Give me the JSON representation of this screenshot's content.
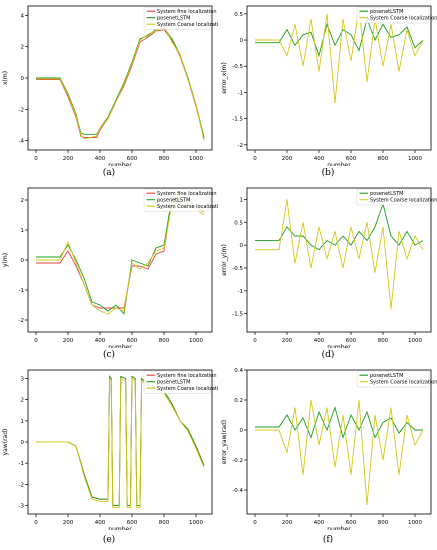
{
  "colors": {
    "fine": "#e8413c",
    "lstm": "#1e9e1e",
    "coarse": "#d4c81a"
  },
  "chart_data": [
    {
      "type": "line",
      "caption": "(a)",
      "xlabel": "number",
      "ylabel": "x(m)",
      "xlim": [
        -50,
        1100
      ],
      "ylim": [
        -4.6,
        4.6
      ],
      "xticks": [
        0,
        200,
        400,
        600,
        800,
        1000
      ],
      "yticks": [
        -4,
        -2,
        0,
        2,
        4
      ],
      "legend": [
        "System fine localization",
        "posenetLSTM",
        "System Coarse localization"
      ],
      "legend_loc": "top-right",
      "series": [
        {
          "name": "System fine localization",
          "x": [
            0,
            150,
            200,
            250,
            280,
            300,
            380,
            400,
            450,
            500,
            550,
            600,
            650,
            700,
            750,
            800,
            850,
            900,
            950,
            1000,
            1050
          ],
          "y": [
            -0.1,
            -0.1,
            -1.2,
            -2.5,
            -3.7,
            -3.8,
            -3.8,
            -3.3,
            -2.6,
            -1.5,
            -0.5,
            0.8,
            2.3,
            2.6,
            3.0,
            3.1,
            2.4,
            1.4,
            -0.1,
            -1.8,
            -3.9
          ]
        },
        {
          "name": "posenetLSTM",
          "x": [
            0,
            150,
            200,
            250,
            280,
            300,
            380,
            400,
            450,
            500,
            550,
            600,
            650,
            700,
            750,
            800,
            850,
            900,
            950,
            1000,
            1050
          ],
          "y": [
            0.0,
            0.0,
            -1.0,
            -2.3,
            -3.5,
            -3.6,
            -3.6,
            -3.2,
            -2.5,
            -1.4,
            -0.3,
            1.0,
            2.5,
            2.7,
            3.1,
            3.2,
            2.5,
            1.5,
            0.0,
            -1.7,
            -3.8
          ]
        },
        {
          "name": "System Coarse localization",
          "x": [
            0,
            150,
            200,
            250,
            280,
            300,
            380,
            400,
            450,
            500,
            550,
            600,
            650,
            700,
            750,
            800,
            850,
            900,
            950,
            1000,
            1050
          ],
          "y": [
            -0.05,
            -0.05,
            -1.1,
            -2.4,
            -3.6,
            -3.9,
            -3.7,
            -3.2,
            -2.6,
            -1.5,
            -0.4,
            0.9,
            2.4,
            2.8,
            3.0,
            3.3,
            2.3,
            1.5,
            -0.1,
            -1.7,
            -4.0
          ]
        }
      ]
    },
    {
      "type": "line",
      "caption": "(b)",
      "xlabel": "number",
      "ylabel": "error_x(m)",
      "xlim": [
        -50,
        1100
      ],
      "ylim": [
        -2.1,
        0.65
      ],
      "xticks": [
        0,
        200,
        400,
        600,
        800,
        1000
      ],
      "yticks": [
        -2.0,
        -1.5,
        -1.0,
        -0.5,
        0.0,
        0.5
      ],
      "legend": [
        "posenetLSTM",
        "System Coarse localization"
      ],
      "legend_loc": "top-right",
      "series": [
        {
          "name": "posenetLSTM",
          "x": [
            0,
            100,
            150,
            200,
            250,
            300,
            350,
            400,
            450,
            500,
            550,
            600,
            650,
            700,
            750,
            800,
            850,
            900,
            950,
            1000,
            1050
          ],
          "y": [
            -0.05,
            -0.05,
            -0.05,
            0.2,
            -0.1,
            0.1,
            0.15,
            -0.3,
            0.3,
            -0.1,
            0.2,
            0.1,
            -0.2,
            0.4,
            0.0,
            0.3,
            0.05,
            0.1,
            0.25,
            -0.15,
            0.0
          ]
        },
        {
          "name": "System Coarse localization",
          "x": [
            0,
            100,
            150,
            200,
            250,
            300,
            350,
            400,
            450,
            500,
            550,
            600,
            650,
            700,
            750,
            800,
            850,
            900,
            950,
            1000,
            1050
          ],
          "y": [
            0.0,
            0.0,
            0.0,
            -0.3,
            0.3,
            -0.5,
            0.4,
            -0.6,
            0.5,
            -1.2,
            0.4,
            -0.4,
            0.6,
            -0.8,
            0.4,
            -0.5,
            0.3,
            -0.6,
            0.2,
            -0.3,
            0.0
          ]
        }
      ]
    },
    {
      "type": "line",
      "caption": "(c)",
      "xlabel": "number",
      "ylabel": "y(m)",
      "xlim": [
        -50,
        1100
      ],
      "ylim": [
        -2.4,
        2.4
      ],
      "xticks": [
        0,
        200,
        400,
        600,
        800,
        1000
      ],
      "yticks": [
        -2,
        -1,
        0,
        1,
        2
      ],
      "legend": [
        "System fine localization",
        "posenetLSTM",
        "System Coarse localization"
      ],
      "legend_loc": "top-right",
      "series": [
        {
          "name": "System fine localization",
          "x": [
            0,
            150,
            200,
            250,
            300,
            350,
            400,
            450,
            500,
            550,
            600,
            650,
            700,
            750,
            800,
            850,
            900,
            950,
            1000,
            1050
          ],
          "y": [
            -0.1,
            -0.1,
            0.3,
            -0.2,
            -0.8,
            -1.5,
            -1.6,
            -1.6,
            -1.6,
            -1.6,
            -0.2,
            -0.2,
            -0.3,
            0.2,
            0.3,
            2.0,
            2.0,
            1.9,
            1.7,
            1.6
          ]
        },
        {
          "name": "posenetLSTM",
          "x": [
            0,
            150,
            200,
            250,
            300,
            350,
            400,
            450,
            500,
            550,
            600,
            650,
            700,
            750,
            800,
            850,
            900,
            950,
            1000,
            1050
          ],
          "y": [
            0.1,
            0.1,
            0.5,
            0.0,
            -0.6,
            -1.4,
            -1.5,
            -1.7,
            -1.5,
            -1.8,
            0.0,
            -0.1,
            -0.2,
            0.4,
            0.5,
            2.1,
            1.9,
            2.0,
            1.8,
            1.6
          ]
        },
        {
          "name": "System Coarse localization",
          "x": [
            0,
            150,
            200,
            250,
            300,
            350,
            400,
            450,
            500,
            550,
            600,
            650,
            700,
            750,
            800,
            850,
            900,
            950,
            1000,
            1050
          ],
          "y": [
            0.0,
            0.0,
            0.6,
            -0.1,
            -0.8,
            -1.5,
            -1.7,
            -1.8,
            -1.6,
            -1.7,
            -0.1,
            -0.3,
            -0.1,
            0.3,
            0.4,
            1.9,
            2.2,
            1.8,
            1.7,
            1.5
          ]
        }
      ]
    },
    {
      "type": "line",
      "caption": "(d)",
      "xlabel": "number",
      "ylabel": "error_y(m)",
      "xlim": [
        -50,
        1100
      ],
      "ylim": [
        -1.9,
        1.25
      ],
      "xticks": [
        0,
        200,
        400,
        600,
        800,
        1000
      ],
      "yticks": [
        -1.5,
        -1.0,
        -0.5,
        0.0,
        0.5,
        1.0
      ],
      "legend": [
        "posenetLSTM",
        "System Coarse localization"
      ],
      "legend_loc": "top-right",
      "series": [
        {
          "name": "posenetLSTM",
          "x": [
            0,
            100,
            150,
            200,
            250,
            300,
            350,
            400,
            450,
            500,
            550,
            600,
            650,
            700,
            750,
            800,
            850,
            900,
            950,
            1000,
            1050
          ],
          "y": [
            0.1,
            0.1,
            0.1,
            0.4,
            0.2,
            0.2,
            0.0,
            -0.1,
            0.1,
            0.0,
            0.2,
            0.0,
            0.3,
            0.1,
            0.4,
            0.9,
            0.2,
            0.0,
            0.3,
            0.0,
            0.1
          ]
        },
        {
          "name": "System Coarse localization",
          "x": [
            0,
            100,
            150,
            200,
            250,
            300,
            350,
            400,
            450,
            500,
            550,
            600,
            650,
            700,
            750,
            800,
            850,
            900,
            950,
            1000,
            1050
          ],
          "y": [
            -0.1,
            -0.1,
            -0.1,
            1.0,
            -0.4,
            0.5,
            -0.5,
            0.4,
            -0.3,
            0.3,
            -0.5,
            0.4,
            -0.3,
            0.5,
            -0.6,
            0.4,
            -1.4,
            0.3,
            -0.3,
            0.2,
            -0.1
          ]
        }
      ]
    },
    {
      "type": "line",
      "caption": "(e)",
      "xlabel": "number",
      "ylabel": "yaw(rad)",
      "xlim": [
        -50,
        1100
      ],
      "ylim": [
        -3.4,
        3.4
      ],
      "xticks": [
        0,
        200,
        400,
        600,
        800,
        1000
      ],
      "yticks": [
        -3,
        -2,
        -1,
        0,
        1,
        2,
        3
      ],
      "legend": [
        "System fine localization",
        "posenetLSTM",
        "System Coarse localization"
      ],
      "legend_loc": "top-right",
      "series": [
        {
          "name": "System fine localization",
          "x": [
            0,
            200,
            250,
            300,
            350,
            400,
            450,
            460,
            470,
            480,
            520,
            530,
            560,
            570,
            590,
            600,
            620,
            630,
            650,
            660,
            700,
            750,
            800,
            850,
            900,
            950,
            1000,
            1050
          ],
          "y": [
            0.0,
            0.0,
            -0.2,
            -1.5,
            -2.6,
            -2.7,
            -2.7,
            3.1,
            3.0,
            -3.0,
            -3.0,
            3.1,
            3.0,
            -3.0,
            -3.0,
            3.1,
            3.0,
            -3.0,
            -3.0,
            3.0,
            2.7,
            2.5,
            2.4,
            1.8,
            1.0,
            0.6,
            -0.2,
            -1.1
          ]
        },
        {
          "name": "posenetLSTM",
          "x": [
            0,
            200,
            250,
            300,
            350,
            400,
            450,
            460,
            470,
            480,
            520,
            530,
            560,
            570,
            590,
            600,
            620,
            630,
            650,
            660,
            700,
            750,
            800,
            850,
            900,
            950,
            1000,
            1050
          ],
          "y": [
            0.0,
            0.0,
            -0.2,
            -1.5,
            -2.6,
            -2.7,
            -2.7,
            3.1,
            3.0,
            -3.0,
            -3.0,
            3.1,
            3.0,
            -3.0,
            -3.0,
            3.1,
            3.0,
            -3.0,
            -3.0,
            3.0,
            2.7,
            2.5,
            2.4,
            1.8,
            1.0,
            0.6,
            -0.2,
            -1.1
          ]
        },
        {
          "name": "System Coarse localization",
          "x": [
            0,
            200,
            250,
            300,
            350,
            400,
            450,
            460,
            470,
            480,
            520,
            530,
            560,
            570,
            590,
            600,
            620,
            630,
            650,
            660,
            700,
            750,
            800,
            850,
            900,
            950,
            1000,
            1050
          ],
          "y": [
            0.0,
            0.0,
            -0.2,
            -1.6,
            -2.7,
            -2.8,
            -2.8,
            3.0,
            2.9,
            -3.1,
            -3.1,
            3.0,
            2.9,
            -3.1,
            -3.1,
            3.0,
            2.9,
            -3.1,
            -3.1,
            2.9,
            2.6,
            2.4,
            2.3,
            1.7,
            1.0,
            0.5,
            -0.3,
            -1.2
          ]
        }
      ]
    },
    {
      "type": "line",
      "caption": "(f)",
      "xlabel": "number",
      "ylabel": "error_yaw(rad)",
      "xlim": [
        -50,
        1100
      ],
      "ylim": [
        -0.56,
        0.4
      ],
      "xticks": [
        0,
        200,
        400,
        600,
        800,
        1000
      ],
      "yticks": [
        -0.4,
        -0.2,
        0.0,
        0.2,
        0.4
      ],
      "legend": [
        "posenetLSTM",
        "System Coarse localization"
      ],
      "legend_loc": "top-right",
      "series": [
        {
          "name": "posenetLSTM",
          "x": [
            0,
            100,
            150,
            200,
            250,
            300,
            350,
            400,
            450,
            500,
            550,
            600,
            650,
            700,
            750,
            800,
            850,
            900,
            950,
            1000,
            1050
          ],
          "y": [
            0.02,
            0.02,
            0.02,
            0.1,
            0.0,
            0.08,
            -0.05,
            0.12,
            0.0,
            0.15,
            -0.05,
            0.1,
            0.0,
            0.12,
            -0.05,
            0.05,
            0.08,
            -0.02,
            0.05,
            0.0,
            0.0
          ]
        },
        {
          "name": "System Coarse localization",
          "x": [
            0,
            100,
            150,
            200,
            250,
            300,
            350,
            400,
            450,
            500,
            550,
            600,
            650,
            700,
            750,
            800,
            850,
            900,
            950,
            1000,
            1050
          ],
          "y": [
            0.0,
            0.0,
            0.0,
            -0.15,
            0.15,
            -0.3,
            0.2,
            -0.1,
            0.15,
            -0.25,
            0.1,
            -0.3,
            0.2,
            -0.5,
            0.1,
            -0.2,
            0.15,
            -0.3,
            0.1,
            -0.1,
            0.0
          ]
        }
      ]
    }
  ]
}
